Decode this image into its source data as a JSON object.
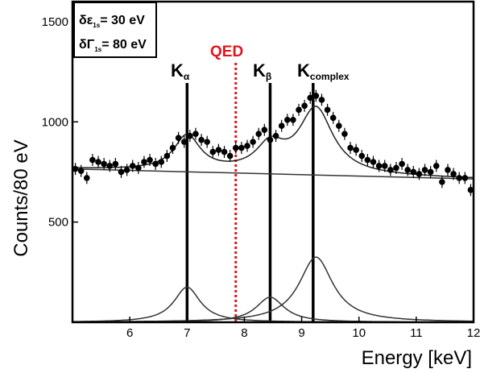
{
  "chart_data": {
    "type": "scatter",
    "xlabel": "Energy [keV]",
    "ylabel": "Counts/80 eV",
    "xlim": [
      5.0,
      12.0
    ],
    "ylim": [
      0,
      1600
    ],
    "xticks": [
      "6",
      "7",
      "8",
      "9",
      "10",
      "11",
      "12"
    ],
    "yticks": [
      "500",
      "1000",
      "1500"
    ],
    "grid": false,
    "annotations": {
      "box_line1_main": "δε",
      "box_line1_sub": "1s",
      "box_line1_value": "= 30 eV",
      "box_line2_main": "δΓ",
      "box_line2_sub": "1s",
      "box_line2_value": "= 80 eV",
      "qed": "QED",
      "k_alpha_main": "K",
      "k_alpha_sub": "α",
      "k_beta_main": "K",
      "k_beta_sub": "β",
      "k_complex_main": "K",
      "k_complex_sub": "complex"
    },
    "lines": {
      "k_alpha_x": 7.0,
      "k_beta_x": 8.45,
      "k_complex_x": 9.2,
      "qed_x": 7.85,
      "qed_color": "#e0141e"
    },
    "background": {
      "x": [
        5.0,
        12.0
      ],
      "y": [
        765,
        715
      ]
    },
    "peaks": [
      {
        "center": 7.0,
        "amplitude": 175,
        "sigma": 0.28
      },
      {
        "center": 8.45,
        "amplitude": 125,
        "sigma": 0.3
      },
      {
        "center": 9.25,
        "amplitude": 325,
        "sigma": 0.36
      }
    ],
    "points": {
      "x": [
        5.05,
        5.15,
        5.25,
        5.35,
        5.45,
        5.55,
        5.65,
        5.75,
        5.85,
        5.95,
        6.05,
        6.15,
        6.25,
        6.35,
        6.45,
        6.55,
        6.65,
        6.75,
        6.85,
        6.95,
        7.05,
        7.15,
        7.25,
        7.35,
        7.45,
        7.55,
        7.65,
        7.75,
        7.85,
        7.95,
        8.05,
        8.15,
        8.25,
        8.35,
        8.45,
        8.55,
        8.65,
        8.75,
        8.85,
        8.95,
        9.05,
        9.15,
        9.25,
        9.35,
        9.45,
        9.55,
        9.65,
        9.75,
        9.85,
        9.95,
        10.05,
        10.15,
        10.25,
        10.35,
        10.45,
        10.55,
        10.65,
        10.75,
        10.85,
        10.95,
        11.05,
        11.15,
        11.25,
        11.35,
        11.45,
        11.55,
        11.65,
        11.75,
        11.85,
        11.95
      ],
      "y": [
        765,
        755,
        720,
        810,
        800,
        790,
        780,
        790,
        750,
        760,
        780,
        770,
        800,
        810,
        790,
        800,
        830,
        870,
        920,
        900,
        930,
        940,
        910,
        900,
        850,
        860,
        850,
        830,
        870,
        870,
        880,
        900,
        940,
        960,
        910,
        930,
        980,
        1010,
        1010,
        1060,
        1080,
        1120,
        1130,
        1110,
        1060,
        1020,
        980,
        940,
        870,
        860,
        830,
        810,
        800,
        780,
        780,
        760,
        770,
        790,
        760,
        750,
        740,
        760,
        750,
        780,
        700,
        760,
        740,
        720,
        720,
        660
      ],
      "yerr": 30
    }
  }
}
